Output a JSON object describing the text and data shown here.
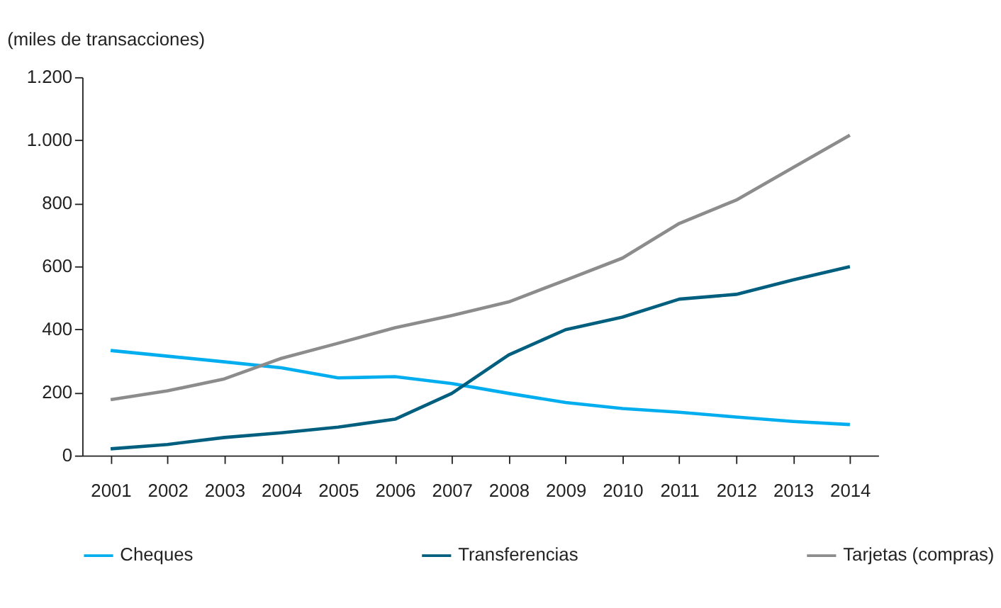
{
  "chart_data": {
    "type": "line",
    "ylabel": "(miles de transacciones)",
    "categories": [
      "2001",
      "2002",
      "2003",
      "2004",
      "2005",
      "2006",
      "2007",
      "2008",
      "2009",
      "2010",
      "2011",
      "2012",
      "2013",
      "2014"
    ],
    "series": [
      {
        "name": "Cheques",
        "color": "#00aeef",
        "values": [
          333,
          315,
          297,
          278,
          246,
          250,
          228,
          197,
          168,
          149,
          137,
          122,
          108,
          98
        ]
      },
      {
        "name": "Transferencias",
        "color": "#005e7f",
        "values": [
          21,
          35,
          57,
          72,
          90,
          115,
          197,
          319,
          399,
          439,
          496,
          511,
          557,
          599
        ]
      },
      {
        "name": "Tarjetas (compras)",
        "color": "#8c8c8c",
        "values": [
          177,
          205,
          243,
          308,
          356,
          405,
          444,
          487,
          556,
          626,
          736,
          810,
          913,
          1016
        ]
      }
    ],
    "ylim": [
      0,
      1200
    ],
    "yticks": [
      0,
      200,
      400,
      600,
      800,
      {
        "value": 1000,
        "label": "1.000"
      },
      {
        "value": 1200,
        "label": "1.200"
      }
    ],
    "grid": false,
    "legend": "bottom",
    "line_style": "solid",
    "marker": "none"
  }
}
